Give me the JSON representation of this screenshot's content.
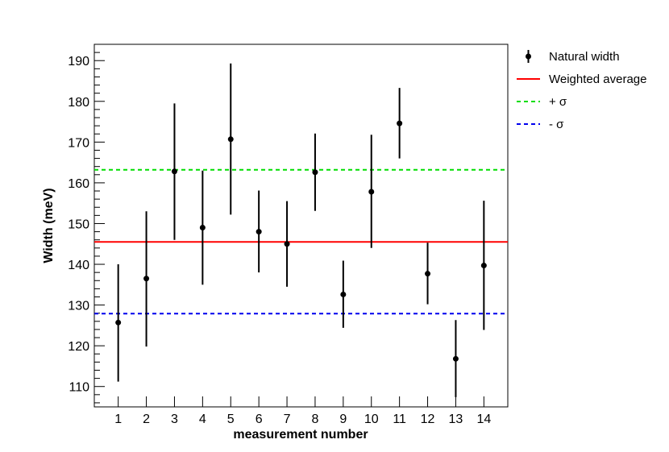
{
  "chart_data": {
    "type": "scatter",
    "title": "",
    "xlabel": "measurement number",
    "ylabel": "Width (meV)",
    "xlim": [
      0.15,
      14.85
    ],
    "ylim": [
      105,
      194
    ],
    "xticks": [
      1,
      2,
      3,
      4,
      5,
      6,
      7,
      8,
      9,
      10,
      11,
      12,
      13,
      14
    ],
    "yticks": [
      110,
      120,
      130,
      140,
      150,
      160,
      170,
      180,
      190
    ],
    "grid": false,
    "legend_position": "right",
    "series": [
      {
        "name": "Natural width",
        "kind": "errorbar",
        "color": "#000000",
        "x": [
          1,
          2,
          3,
          4,
          5,
          6,
          7,
          8,
          9,
          10,
          11,
          12,
          13,
          14
        ],
        "y": [
          125.7,
          136.5,
          162.8,
          149.0,
          170.7,
          148.0,
          145.0,
          162.6,
          132.6,
          157.8,
          174.6,
          137.7,
          116.8,
          139.7
        ],
        "yerr_low": [
          14.5,
          16.7,
          16.8,
          14.0,
          18.5,
          10.0,
          10.5,
          9.5,
          8.2,
          13.8,
          8.6,
          7.5,
          9.4,
          15.8
        ],
        "yerr_high": [
          14.3,
          16.5,
          16.7,
          14.0,
          18.6,
          10.1,
          10.5,
          9.5,
          8.3,
          14.0,
          8.7,
          7.6,
          9.5,
          15.9
        ]
      },
      {
        "name": "Weighted average",
        "kind": "hline",
        "value": 145.5,
        "color": "#ff0000",
        "dashed": false
      },
      {
        "name": "+ σ",
        "kind": "hline",
        "value": 163.2,
        "color": "#00dd00",
        "dashed": true
      },
      {
        "name": "- σ",
        "kind": "hline",
        "value": 127.9,
        "color": "#0000ee",
        "dashed": true
      }
    ]
  }
}
